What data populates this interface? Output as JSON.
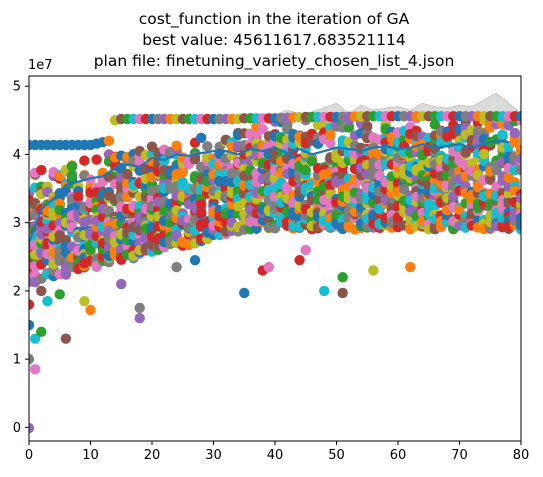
{
  "chart_data": {
    "type": "scatter",
    "title_lines": [
      "cost_function in the iteration of GA",
      "best value: 45611617.683521114",
      "plan file: finetuning_variety_chosen_list_4.json"
    ],
    "xlabel": "",
    "ylabel": "",
    "y_offset_text": "1e7",
    "xlim": [
      0,
      80
    ],
    "ylim": [
      -0.2,
      5.15
    ],
    "x_ticks": [
      0,
      10,
      20,
      30,
      40,
      50,
      60,
      70,
      80
    ],
    "y_ticks": [
      0,
      1,
      2,
      3,
      4,
      5
    ],
    "grid": false,
    "legend": "none",
    "best_value": 4.561161768352111,
    "colors": {
      "palette": [
        "#1f77b4",
        "#ff7f0e",
        "#2ca02c",
        "#d62728",
        "#9467bd",
        "#8c564b",
        "#e377c2",
        "#7f7f7f",
        "#bcbd22",
        "#17becf"
      ],
      "band_fill": "#d3d3d3",
      "band_stroke": "#b0b0b0"
    },
    "top_line": {
      "name": "",
      "x": [
        0,
        5,
        10,
        13,
        14,
        15,
        20,
        25,
        30,
        34,
        35,
        40,
        45,
        50,
        55,
        60,
        65,
        70,
        75,
        80
      ],
      "y": [
        4.14,
        4.14,
        4.14,
        4.2,
        4.5,
        4.52,
        4.52,
        4.52,
        4.52,
        4.52,
        4.53,
        4.53,
        4.55,
        4.55,
        4.56,
        4.56,
        4.56,
        4.56,
        4.56,
        4.56
      ]
    },
    "mean_line": {
      "name": "",
      "x": [
        0,
        2,
        4,
        6,
        8,
        10,
        12,
        14,
        16,
        18,
        20,
        22,
        24,
        26,
        28,
        30,
        32,
        34,
        36,
        38,
        40,
        42,
        44,
        46,
        48,
        50,
        52,
        54,
        56,
        58,
        60,
        62,
        64,
        66,
        68,
        70,
        72,
        74,
        76,
        78
      ],
      "y": [
        2.7,
        3.2,
        3.35,
        3.55,
        3.6,
        3.65,
        3.68,
        3.8,
        3.85,
        3.82,
        3.95,
        3.92,
        4.0,
        3.98,
        4.02,
        4.05,
        4.05,
        4.0,
        4.08,
        4.05,
        4.1,
        4.02,
        4.08,
        4.0,
        4.05,
        4.1,
        4.08,
        4.05,
        4.1,
        4.12,
        4.08,
        4.1,
        4.15,
        4.1,
        4.12,
        4.15,
        4.1,
        4.15,
        4.2,
        4.18
      ]
    },
    "band": {
      "x": [
        30,
        34,
        36,
        40,
        42,
        44,
        46,
        50,
        52,
        54,
        56,
        58,
        60,
        62,
        64,
        66,
        68,
        70,
        72,
        74,
        76,
        78,
        80
      ],
      "upper": [
        4.52,
        4.55,
        4.6,
        4.58,
        4.65,
        4.6,
        4.62,
        4.75,
        4.6,
        4.72,
        4.65,
        4.68,
        4.7,
        4.65,
        4.75,
        4.7,
        4.68,
        4.72,
        4.7,
        4.8,
        4.9,
        4.75,
        4.6
      ],
      "lower": [
        4.45,
        4.5,
        4.5,
        4.5,
        4.52,
        4.52,
        4.52,
        4.55,
        4.52,
        4.55,
        4.55,
        4.55,
        4.55,
        4.55,
        4.55,
        4.56,
        4.56,
        4.56,
        4.56,
        4.56,
        4.56,
        4.56,
        4.56
      ]
    },
    "outliers": [
      {
        "x": 0,
        "y": -0.01
      },
      {
        "x": 0,
        "y": 1.0
      },
      {
        "x": 0,
        "y": 1.5
      },
      {
        "x": 0,
        "y": 1.8
      },
      {
        "x": 1,
        "y": 0.85
      },
      {
        "x": 1,
        "y": 1.3
      },
      {
        "x": 2,
        "y": 1.4
      },
      {
        "x": 6,
        "y": 1.3
      },
      {
        "x": 9,
        "y": 1.85
      },
      {
        "x": 10,
        "y": 1.72
      },
      {
        "x": 18,
        "y": 1.6
      },
      {
        "x": 18,
        "y": 1.75
      },
      {
        "x": 35,
        "y": 1.97
      },
      {
        "x": 38,
        "y": 2.3
      },
      {
        "x": 39,
        "y": 2.35
      },
      {
        "x": 48,
        "y": 2.0
      },
      {
        "x": 51,
        "y": 2.2
      },
      {
        "x": 51,
        "y": 1.97
      },
      {
        "x": 56,
        "y": 2.3
      },
      {
        "x": 62,
        "y": 2.35
      },
      {
        "x": 15,
        "y": 2.1
      },
      {
        "x": 24,
        "y": 2.35
      },
      {
        "x": 27,
        "y": 2.45
      },
      {
        "x": 44,
        "y": 2.45
      },
      {
        "x": 45,
        "y": 2.6
      },
      {
        "x": 3,
        "y": 1.85
      },
      {
        "x": 5,
        "y": 1.95
      },
      {
        "x": 2,
        "y": 2.0
      }
    ],
    "cloud": {
      "generations": 80,
      "points_per_generation": 26,
      "low_start": 2.1,
      "low_end": 2.9,
      "high_start": 3.8,
      "high_end": 4.56
    }
  }
}
